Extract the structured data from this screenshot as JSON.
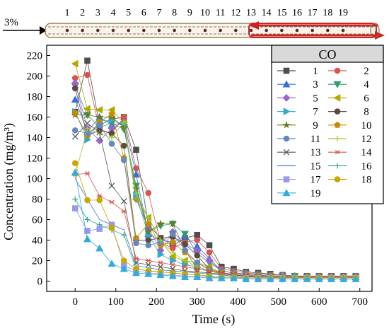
{
  "pipe": {
    "inlet_label": "3%",
    "sensor_labels": [
      "1",
      "2",
      "3",
      "4",
      "5",
      "6",
      "7",
      "8",
      "9",
      "10",
      "11",
      "12",
      "13",
      "14",
      "15",
      "16",
      "17",
      "18",
      "19"
    ],
    "highlight_start_sensor": 13
  },
  "chart_data": {
    "type": "line",
    "title": "",
    "xlabel": "Time (s)",
    "ylabel": "Concentration (mg/m³)",
    "xlim": [
      -70,
      730
    ],
    "ylim": [
      -10,
      230
    ],
    "xticks": [
      0,
      100,
      200,
      300,
      400,
      500,
      600,
      700
    ],
    "yticks": [
      0,
      20,
      40,
      60,
      80,
      100,
      120,
      140,
      160,
      180,
      200,
      220
    ],
    "legend_title": "CO",
    "legend_position": "top-right",
    "x": [
      0,
      30,
      60,
      90,
      120,
      150,
      180,
      210,
      240,
      270,
      300,
      330,
      360,
      390,
      420,
      450,
      480,
      510,
      540,
      570,
      600,
      630,
      660,
      690
    ],
    "series": [
      {
        "name": "1",
        "color": "#4d4d4d",
        "marker": "square",
        "values": [
          165,
          215,
          152,
          158,
          160,
          128,
          55,
          42,
          35,
          42,
          45,
          35,
          14,
          12,
          9,
          8,
          7,
          6,
          5,
          5,
          5,
          5,
          5,
          5
        ]
      },
      {
        "name": "2",
        "color": "#d9534f",
        "marker": "circle",
        "values": [
          198,
          201,
          148,
          144,
          160,
          110,
          86,
          38,
          32,
          38,
          40,
          28,
          12,
          10,
          8,
          7,
          6,
          6,
          5,
          5,
          5,
          5,
          5,
          5
        ]
      },
      {
        "name": "3",
        "color": "#3a6fd8",
        "marker": "triangle-up",
        "values": [
          177,
          146,
          160,
          152,
          155,
          104,
          46,
          40,
          38,
          44,
          34,
          22,
          10,
          8,
          7,
          6,
          5,
          5,
          5,
          4,
          4,
          4,
          4,
          4
        ]
      },
      {
        "name": "4",
        "color": "#2e9e6e",
        "marker": "triangle-down",
        "values": [
          190,
          162,
          150,
          154,
          148,
          93,
          48,
          54,
          56,
          46,
          27,
          18,
          10,
          8,
          7,
          6,
          5,
          5,
          5,
          4,
          4,
          4,
          4,
          4
        ]
      },
      {
        "name": "5",
        "color": "#9966cc",
        "marker": "diamond",
        "values": [
          193,
          149,
          137,
          149,
          155,
          80,
          52,
          30,
          48,
          36,
          30,
          20,
          10,
          8,
          7,
          6,
          5,
          5,
          4,
          4,
          4,
          4,
          4,
          4
        ]
      },
      {
        "name": "6",
        "color": "#b3a800",
        "marker": "triangle-left",
        "values": [
          212,
          168,
          167,
          167,
          154,
          80,
          62,
          40,
          24,
          20,
          18,
          14,
          8,
          7,
          6,
          5,
          5,
          4,
          4,
          4,
          4,
          4,
          4,
          4
        ]
      },
      {
        "name": "7",
        "color": "#33aacc",
        "marker": "triangle-right",
        "values": [
          165,
          138,
          156,
          157,
          152,
          84,
          45,
          26,
          20,
          16,
          14,
          10,
          7,
          6,
          5,
          5,
          4,
          4,
          4,
          4,
          4,
          4,
          4,
          4
        ]
      },
      {
        "name": "8",
        "color": "#5a4a42",
        "marker": "circle",
        "values": [
          188,
          142,
          147,
          144,
          132,
          40,
          40,
          42,
          43,
          36,
          25,
          12,
          8,
          6,
          5,
          5,
          4,
          4,
          4,
          4,
          4,
          4,
          4,
          4
        ]
      },
      {
        "name": "9",
        "color": "#6b7a1f",
        "marker": "star",
        "values": [
          162,
          162,
          160,
          160,
          150,
          90,
          48,
          56,
          56,
          30,
          12,
          10,
          8,
          6,
          5,
          5,
          4,
          4,
          4,
          4,
          4,
          4,
          4,
          4
        ]
      },
      {
        "name": "10",
        "color": "#c88a00",
        "marker": "pentagon",
        "values": [
          164,
          142,
          155,
          163,
          120,
          42,
          56,
          35,
          38,
          28,
          18,
          12,
          8,
          6,
          5,
          5,
          4,
          4,
          4,
          4,
          4,
          4,
          4,
          4
        ]
      },
      {
        "name": "11",
        "color": "#6688bb",
        "marker": "circle",
        "values": [
          147,
          144,
          152,
          134,
          118,
          37,
          35,
          38,
          46,
          30,
          18,
          11,
          7,
          6,
          5,
          4,
          4,
          4,
          4,
          4,
          4,
          4,
          4,
          4
        ]
      },
      {
        "name": "12",
        "color": "#99cc33",
        "marker": "plus",
        "values": [
          103,
          149,
          144,
          140,
          155,
          85,
          62,
          40,
          28,
          20,
          14,
          10,
          7,
          6,
          5,
          4,
          4,
          4,
          4,
          4,
          4,
          4,
          4,
          4
        ]
      },
      {
        "name": "13",
        "color": "#555555",
        "marker": "cross",
        "values": [
          141,
          154,
          145,
          93,
          78,
          18,
          16,
          14,
          12,
          10,
          9,
          8,
          7,
          6,
          5,
          4,
          4,
          4,
          4,
          4,
          4,
          4,
          4,
          4
        ]
      },
      {
        "name": "14",
        "color": "#d9534f",
        "marker": "asterisk",
        "values": [
          104,
          105,
          83,
          77,
          68,
          22,
          20,
          18,
          16,
          14,
          12,
          10,
          8,
          7,
          6,
          5,
          4,
          4,
          4,
          4,
          4,
          4,
          4,
          4
        ]
      },
      {
        "name": "15",
        "color": "#4477cc",
        "marker": "none",
        "values": [
          100,
          80,
          60,
          55,
          50,
          15,
          13,
          11,
          10,
          9,
          8,
          7,
          6,
          5,
          4,
          4,
          4,
          3,
          3,
          3,
          3,
          3,
          3,
          3
        ]
      },
      {
        "name": "16",
        "color": "#33aa88",
        "marker": "plus",
        "values": [
          80,
          60,
          55,
          50,
          45,
          12,
          10,
          9,
          8,
          7,
          6,
          5,
          4,
          4,
          3,
          3,
          3,
          3,
          3,
          3,
          3,
          3,
          3,
          3
        ]
      },
      {
        "name": "17",
        "color": "#9999ee",
        "marker": "square",
        "values": [
          71,
          49,
          51,
          55,
          15,
          10,
          8,
          7,
          6,
          5,
          4,
          4,
          3,
          3,
          3,
          3,
          3,
          3,
          3,
          3,
          3,
          3,
          3,
          3
        ]
      },
      {
        "name": "18",
        "color": "#c8a800",
        "marker": "circle",
        "values": [
          115,
          79,
          79,
          52,
          20,
          12,
          10,
          9,
          8,
          7,
          6,
          5,
          4,
          4,
          3,
          3,
          3,
          3,
          3,
          3,
          3,
          3,
          3,
          3
        ]
      },
      {
        "name": "19",
        "color": "#33aadd",
        "marker": "triangle-up",
        "values": [
          106,
          41,
          32,
          17,
          12,
          8,
          7,
          6,
          5,
          4,
          4,
          3,
          3,
          3,
          2,
          2,
          2,
          2,
          2,
          2,
          2,
          2,
          2,
          2
        ]
      }
    ]
  }
}
